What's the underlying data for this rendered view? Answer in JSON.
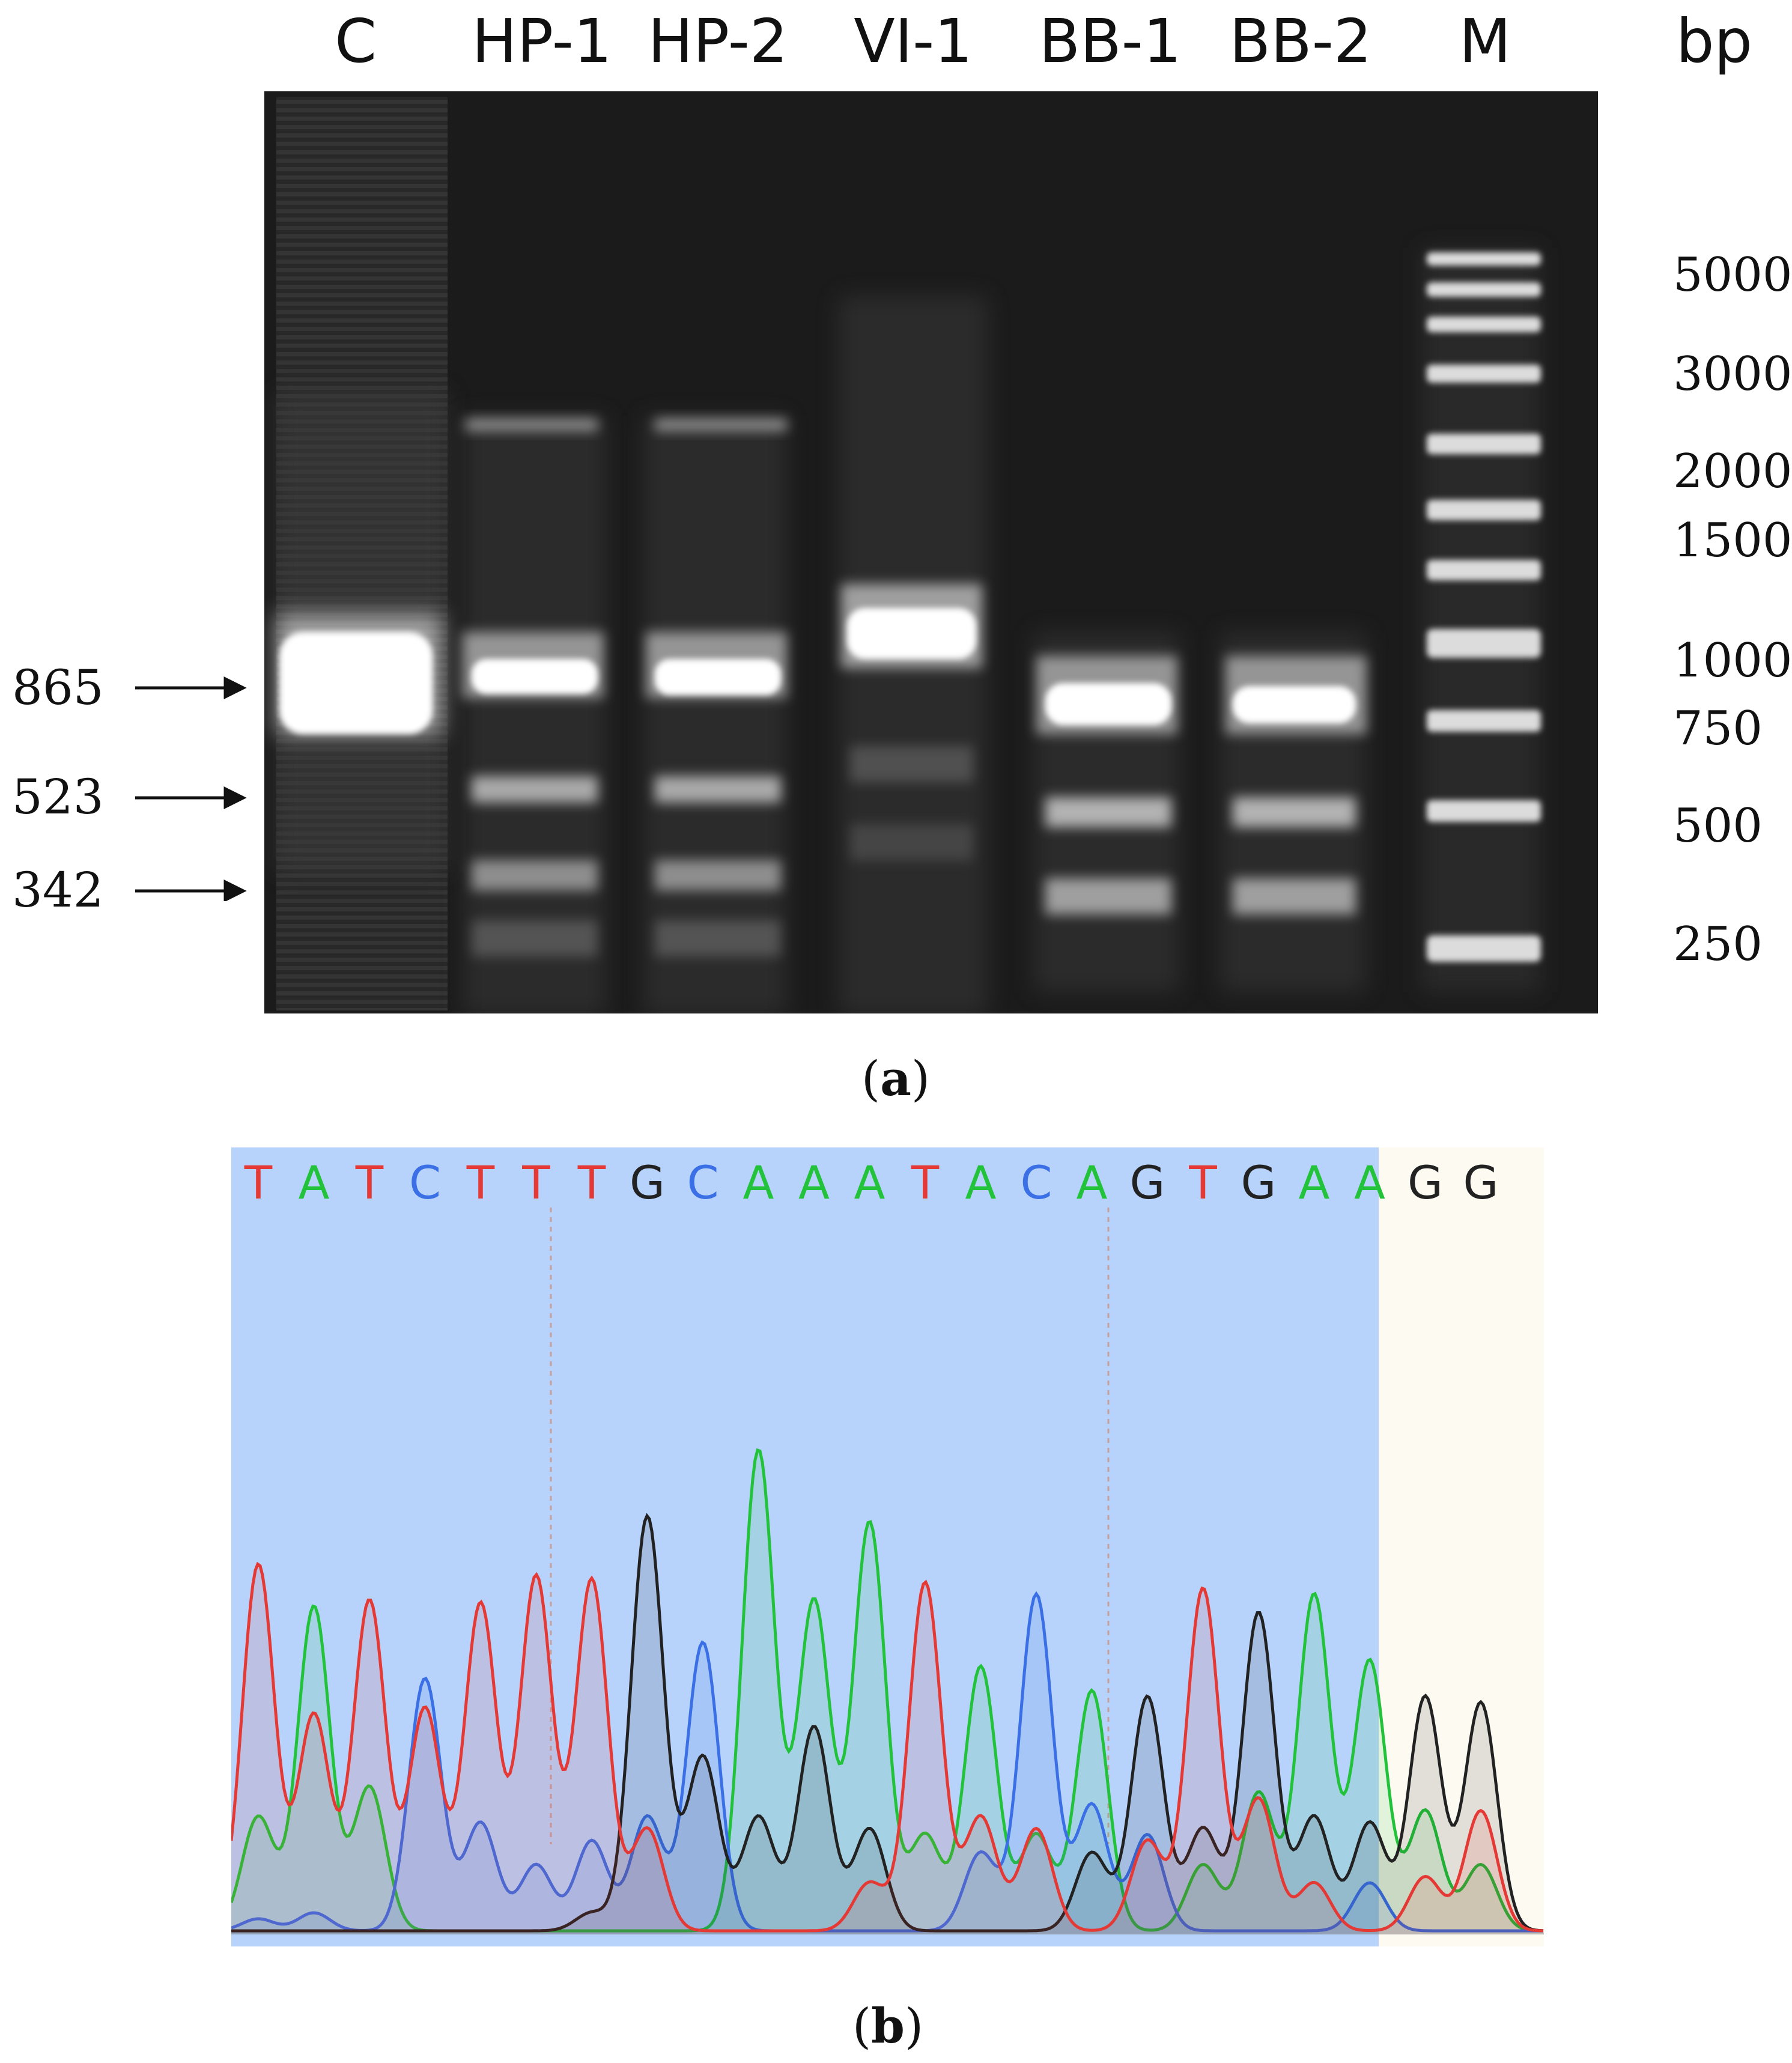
{
  "panel_a": {
    "lane_labels": [
      "C",
      "HP-1",
      "HP-2",
      "VI-1",
      "BB-1",
      "BB-2",
      "M"
    ],
    "unit_label": "bp",
    "marker_sizes": [
      "5000",
      "3000",
      "2000",
      "1500",
      "1000",
      "750",
      "500",
      "250"
    ],
    "arrow_labels": [
      "865",
      "523",
      "342"
    ],
    "caption_letter": "a",
    "colors": {
      "gel_background": "#1b1b1b",
      "band": "#ffffff"
    }
  },
  "panel_b": {
    "sequence": [
      "T",
      "A",
      "T",
      "C",
      "T",
      "T",
      "T",
      "G",
      "C",
      "A",
      "A",
      "A",
      "T",
      "A",
      "C",
      "A",
      "G",
      "T",
      "G",
      "A",
      "A",
      "G",
      "G"
    ],
    "highlight": "sequence read highlighted through base 21",
    "caption_letter": "b",
    "colors": {
      "A": "#22c33a",
      "C": "#3b6fe6",
      "G": "#222222",
      "T": "#e53935",
      "highlight_bg": "#b7d3fb",
      "tail_bg": "#fdfaf2"
    }
  }
}
